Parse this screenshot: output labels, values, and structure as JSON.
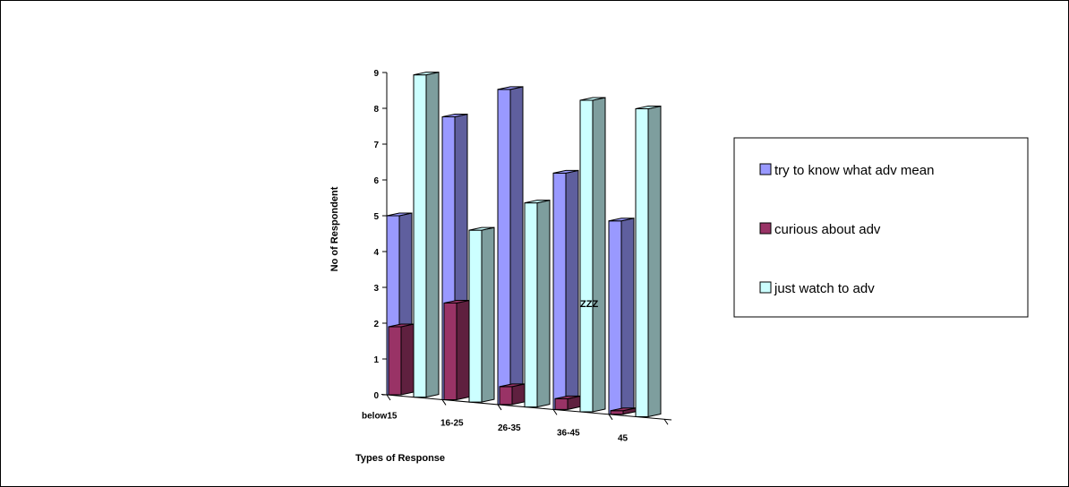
{
  "chart_data": {
    "type": "bar",
    "style": "3d-stacked",
    "categories": [
      "below15",
      "16-25",
      "26-35",
      "36-45",
      "45"
    ],
    "series": [
      {
        "name": "try to know what adv mean",
        "values": [
          5,
          7.9,
          8.8,
          6.6,
          5.4
        ],
        "color": "#9999FF"
      },
      {
        "name": "curious about adv",
        "values": [
          1.9,
          2.7,
          0.5,
          0.3,
          0.1
        ],
        "color": "#993366"
      },
      {
        "name": "just watch to adv",
        "values": [
          9,
          4.8,
          5.7,
          8.7,
          8.6
        ],
        "color": "#CCFFFF"
      }
    ],
    "xlabel": "Types of Response",
    "ylabel": "No of Respondent",
    "ylim": [
      0,
      9
    ],
    "yticks": [
      0,
      1,
      2,
      3,
      4,
      5,
      6,
      7,
      8,
      9
    ],
    "annotation": "ZZZ",
    "grid": false,
    "legend_position": "right"
  }
}
